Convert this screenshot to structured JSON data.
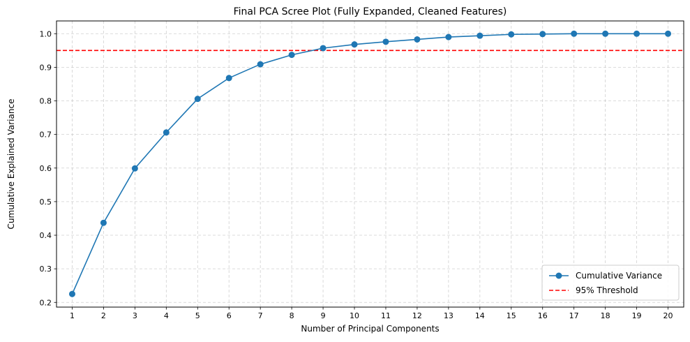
{
  "chart_data": {
    "type": "line",
    "title": "Final PCA Scree Plot (Fully Expanded, Cleaned Features)",
    "xlabel": "Number of Principal Components",
    "ylabel": "Cumulative Explained Variance",
    "x": [
      1,
      2,
      3,
      4,
      5,
      6,
      7,
      8,
      9,
      10,
      11,
      12,
      13,
      14,
      15,
      16,
      17,
      18,
      19,
      20
    ],
    "series": [
      {
        "name": "Cumulative Variance",
        "color": "#1f77b4",
        "marker": "circle",
        "values": [
          0.225,
          0.437,
          0.599,
          0.706,
          0.806,
          0.868,
          0.909,
          0.937,
          0.957,
          0.968,
          0.976,
          0.983,
          0.99,
          0.994,
          0.998,
          0.999,
          1.0,
          1.0,
          1.0,
          1.0
        ]
      }
    ],
    "reference_lines": [
      {
        "name": "95% Threshold",
        "y": 0.95,
        "color": "#ff0000",
        "style": "dashed"
      }
    ],
    "xlim": [
      0.5,
      20.5
    ],
    "ylim": [
      0.186,
      1.038
    ],
    "yticks": [
      "0.2",
      "0.3",
      "0.4",
      "0.5",
      "0.6",
      "0.7",
      "0.8",
      "0.9",
      "1.0"
    ],
    "xticks": [
      "1",
      "2",
      "3",
      "4",
      "5",
      "6",
      "7",
      "8",
      "9",
      "10",
      "11",
      "12",
      "13",
      "14",
      "15",
      "16",
      "17",
      "18",
      "19",
      "20"
    ],
    "grid": true,
    "legend_position": "lower-right"
  }
}
